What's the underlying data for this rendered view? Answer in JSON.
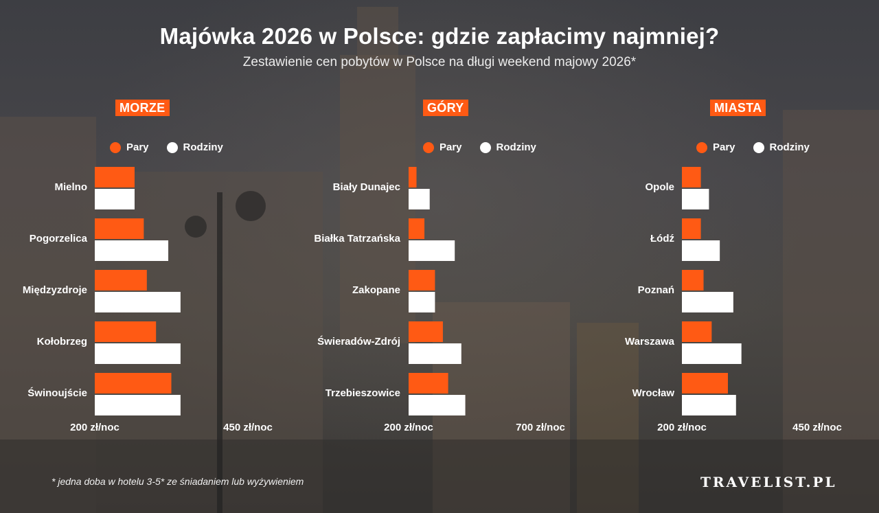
{
  "title": "Majówka 2026 w Polsce: gdzie zapłacimy najmniej?",
  "subtitle": "Zestawienie cen pobytów w Polsce na długi weekend majowy 2026*",
  "footnote": "* jedna doba w hotelu 3-5* ze śniadaniem lub wyżywieniem",
  "brand": "TRAVELIST.PL",
  "colors": {
    "pary": "#ff5a14",
    "rodziny": "#ffffff",
    "accent": "#ff5a14"
  },
  "legend": {
    "pary": "Pary",
    "rodziny": "Rodziny"
  },
  "chart_data": [
    {
      "type": "bar",
      "orientation": "horizontal",
      "title": "MORZE",
      "categories": [
        "Mielno",
        "Pogorzelica",
        "Międzyzdroje",
        "Kołobrzeg",
        "Świnoujście"
      ],
      "series": [
        {
          "name": "Pary",
          "values": [
            265,
            280,
            285,
            300,
            325
          ]
        },
        {
          "name": "Rodziny",
          "values": [
            265,
            320,
            340,
            340,
            340
          ]
        }
      ],
      "xlim": [
        200,
        450
      ],
      "axis_labels": [
        "200 zł/noc",
        "450 zł/noc"
      ]
    },
    {
      "type": "bar",
      "orientation": "horizontal",
      "title": "GÓRY",
      "categories": [
        "Biały Dunajec",
        "Białka Tatrzańska",
        "Zakopane",
        "Świeradów-Zdrój",
        "Trzebieszowice"
      ],
      "series": [
        {
          "name": "Pary",
          "values": [
            230,
            260,
            300,
            330,
            350
          ]
        },
        {
          "name": "Rodziny",
          "values": [
            280,
            375,
            300,
            400,
            415
          ]
        }
      ],
      "xlim": [
        200,
        700
      ],
      "axis_labels": [
        "200 zł/noc",
        "700 zł/noc"
      ]
    },
    {
      "type": "bar",
      "orientation": "horizontal",
      "title": "MIASTA",
      "categories": [
        "Opole",
        "Łódź",
        "Poznań",
        "Warszawa",
        "Wrocław"
      ],
      "series": [
        {
          "name": "Pary",
          "values": [
            235,
            235,
            240,
            255,
            285
          ]
        },
        {
          "name": "Rodziny",
          "values": [
            250,
            270,
            295,
            310,
            300
          ]
        }
      ],
      "xlim": [
        200,
        450
      ],
      "axis_labels": [
        "200 zł/noc",
        "450 zł/noc"
      ]
    }
  ]
}
